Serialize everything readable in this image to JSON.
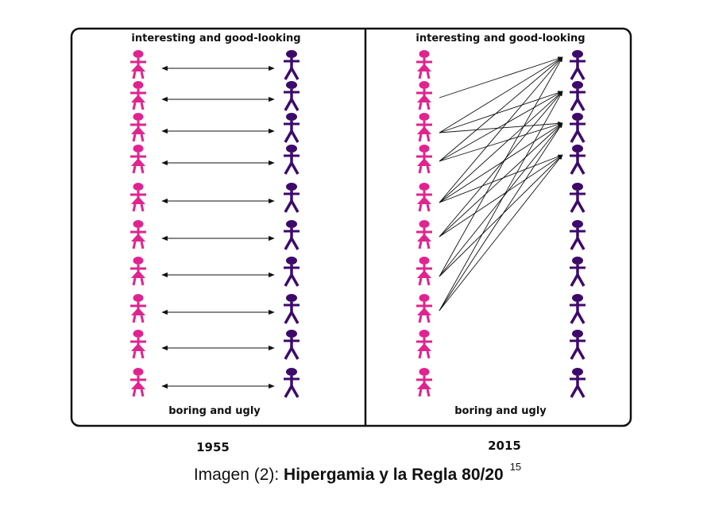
{
  "colors": {
    "woman": "#E0248F",
    "man": "#3D0A6B",
    "frame": "#111111",
    "arrow": "#111111"
  },
  "icons": {
    "woman": "woman-figure-icon",
    "man": "man-figure-icon"
  },
  "panels": [
    {
      "top_label": "interesting and good-looking",
      "bottom_label": "boring and ugly",
      "year": "1955",
      "pairs": [
        [
          0,
          0
        ],
        [
          1,
          1
        ],
        [
          2,
          2
        ],
        [
          3,
          3
        ],
        [
          4,
          4
        ],
        [
          5,
          5
        ],
        [
          6,
          6
        ],
        [
          7,
          7
        ],
        [
          8,
          8
        ],
        [
          9,
          9
        ]
      ]
    },
    {
      "top_label": "interesting and good-looking",
      "bottom_label": "boring and ugly",
      "year": "2015",
      "pairs": [
        [
          1,
          0
        ],
        [
          2,
          0
        ],
        [
          2,
          1
        ],
        [
          2,
          2
        ],
        [
          3,
          0
        ],
        [
          3,
          1
        ],
        [
          3,
          2
        ],
        [
          4,
          0
        ],
        [
          4,
          1
        ],
        [
          4,
          2
        ],
        [
          4,
          3
        ],
        [
          5,
          1
        ],
        [
          5,
          2
        ],
        [
          5,
          3
        ],
        [
          6,
          0
        ],
        [
          6,
          2
        ],
        [
          6,
          3
        ],
        [
          7,
          1
        ],
        [
          7,
          2
        ],
        [
          7,
          3
        ]
      ]
    }
  ],
  "caption": {
    "prefix": "Imagen (2): ",
    "title": "Hipergamia y la Regla 80/20",
    "superscript": "15"
  }
}
